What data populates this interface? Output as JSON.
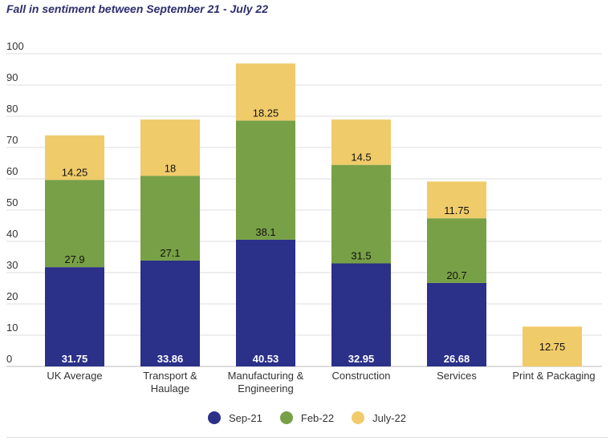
{
  "chart_data": {
    "type": "bar",
    "stacked": true,
    "title": "Fall in sentiment between September 21 - July 22",
    "categories": [
      "UK Average",
      "Transport & Haulage",
      "Manufacturing & Engineering",
      "Construction",
      "Services",
      "Print & Packaging"
    ],
    "category_lines": [
      [
        "UK Average"
      ],
      [
        "Transport &",
        "Haulage"
      ],
      [
        "Manufacturing &",
        "Engineering"
      ],
      [
        "Construction"
      ],
      [
        "Services"
      ],
      [
        "Print & Packaging"
      ]
    ],
    "series": [
      {
        "name": "Sep-21",
        "color": "#2b3089",
        "values": [
          31.75,
          33.86,
          40.53,
          32.95,
          26.68,
          null
        ]
      },
      {
        "name": "Feb-22",
        "color": "#78a046",
        "values": [
          27.9,
          27.1,
          38.1,
          31.5,
          20.7,
          null
        ]
      },
      {
        "name": "July-22",
        "color": "#f0cb6a",
        "values": [
          14.25,
          18,
          18.25,
          14.5,
          11.75,
          12.75
        ]
      }
    ],
    "ylim": [
      0,
      100
    ],
    "yticks": [
      0,
      10,
      20,
      30,
      40,
      50,
      60,
      70,
      80,
      90,
      100
    ],
    "grid": true,
    "legend": "bottom",
    "xlabel": "",
    "ylabel": ""
  }
}
